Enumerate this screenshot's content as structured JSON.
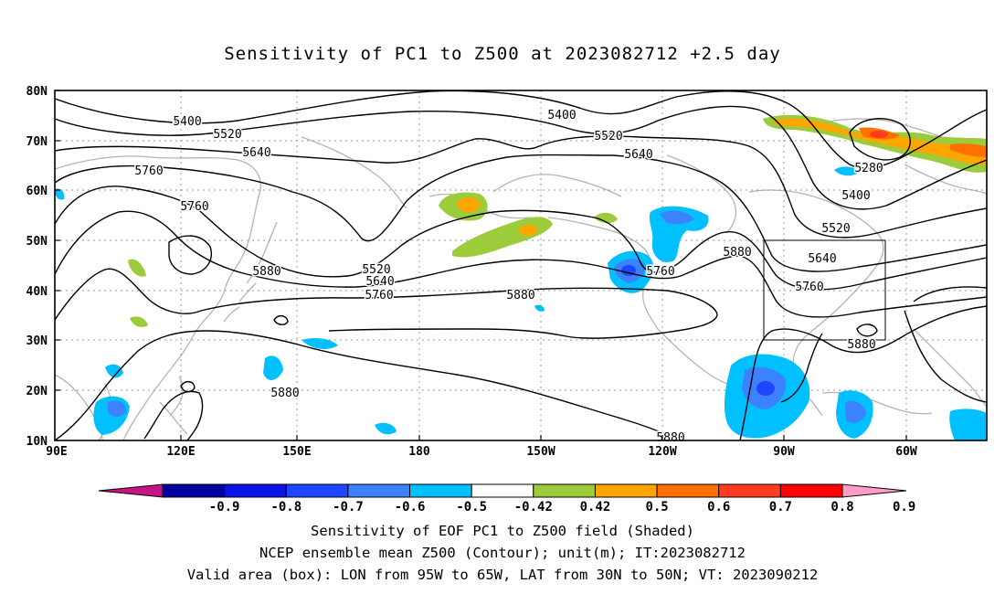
{
  "title": "Sensitivity of PC1 to Z500 at 2023082712 +2.5 day",
  "map": {
    "lat_labels": [
      "80N",
      "70N",
      "60N",
      "50N",
      "40N",
      "30N",
      "20N",
      "10N"
    ],
    "lon_labels": [
      "90E",
      "120E",
      "150E",
      "180",
      "150W",
      "120W",
      "90W",
      "60W"
    ],
    "lon_range": [
      90,
      312
    ],
    "lat_range": [
      10,
      80
    ],
    "grid": "dotted",
    "valid_box": {
      "lon": [
        265,
        295
      ],
      "lat": [
        30,
        50
      ]
    }
  },
  "contours": [
    {
      "label": "5400",
      "pos": [
        [
          205,
          132
        ],
        [
          615,
          125
        ],
        [
          937,
          213
        ]
      ]
    },
    {
      "label": "5520",
      "pos": [
        [
          249,
          146
        ],
        [
          666,
          148
        ],
        [
          915,
          249
        ]
      ]
    },
    {
      "label": "5640",
      "pos": [
        [
          281,
          166
        ],
        [
          699,
          168
        ],
        [
          900,
          282
        ]
      ]
    },
    {
      "label": "5760",
      "pos": [
        [
          163,
          186
        ],
        [
          213,
          225
        ],
        [
          415,
          322
        ],
        [
          723,
          296
        ],
        [
          886,
          313
        ]
      ]
    },
    {
      "label": "5880",
      "pos": [
        [
          292,
          296
        ],
        [
          570,
          322
        ],
        [
          807,
          275
        ],
        [
          312,
          429
        ],
        [
          734,
          478
        ],
        [
          943,
          376
        ]
      ]
    },
    {
      "label": "5520",
      "pos": [
        [
          412,
          294
        ]
      ]
    },
    {
      "label": "5640",
      "pos": [
        [
          416,
          307
        ]
      ]
    },
    {
      "label": "5280",
      "pos": [
        [
          951,
          183
        ]
      ]
    }
  ],
  "colorbar": {
    "labels": [
      "-0.9",
      "-0.8",
      "-0.7",
      "-0.6",
      "-0.5",
      "-0.42",
      "0.42",
      "0.5",
      "0.6",
      "0.7",
      "0.8",
      "0.9"
    ],
    "colors": [
      "#c71585",
      "#0000a0",
      "#0a14e8",
      "#1e46ff",
      "#3c82ff",
      "#00c0ff",
      "#ffffff",
      "#9ccc3c",
      "#ffa500",
      "#ff7000",
      "#ff3c1e",
      "#ff0000",
      "#ff9cc8"
    ]
  },
  "caption": {
    "line1": "Sensitivity of EOF PC1 to Z500 field (Shaded)",
    "line2": "NCEP ensemble mean Z500 (Contour); unit(m); IT:2023082712",
    "line3": "Valid area (box): LON from 95W to 65W, LAT from 30N to 50N; VT: 2023090212"
  }
}
